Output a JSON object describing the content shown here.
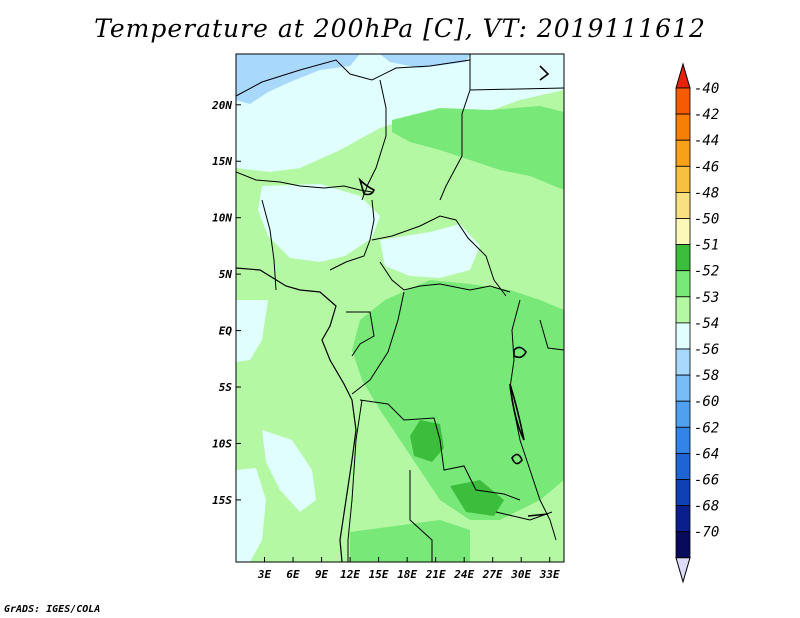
{
  "title": "Temperature at 200hPa [C], VT: 2019111612",
  "credit": "GrADS: IGES/COLA",
  "map": {
    "lon_range": [
      0,
      34.5
    ],
    "lat_range": [
      -20.5,
      24.5
    ],
    "x_ticks": [
      "3E",
      "6E",
      "9E",
      "12E",
      "15E",
      "18E",
      "21E",
      "24E",
      "27E",
      "30E",
      "33E"
    ],
    "y_ticks": [
      "20N",
      "15N",
      "10N",
      "5N",
      "EQ",
      "5S",
      "10S",
      "15S"
    ]
  },
  "legend": {
    "labels": [
      "-40",
      "-42",
      "-44",
      "-46",
      "-48",
      "-50",
      "-51",
      "-52",
      "-53",
      "-54",
      "-56",
      "-58",
      "-60",
      "-62",
      "-64",
      "-66",
      "-68",
      "-70"
    ],
    "colors": [
      "#e8220a",
      "#f55a05",
      "#f77f05",
      "#f8a018",
      "#f8c040",
      "#f8e080",
      "#fbf8b8",
      "#3cbe3c",
      "#78e878",
      "#b4f8a4",
      "#e0fefe",
      "#a8d8fc",
      "#78bcf8",
      "#50a0f0",
      "#3284e6",
      "#1e64d2",
      "#0f40b4",
      "#0a1e8c",
      "#080a5a",
      "#dcdcf8"
    ]
  }
}
